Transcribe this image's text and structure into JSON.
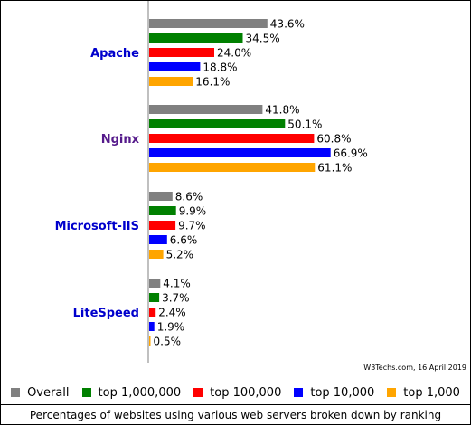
{
  "chart_data": {
    "type": "bar",
    "orientation": "horizontal",
    "categories": [
      "Apache",
      "Nginx",
      "Microsoft-IIS",
      "LiteSpeed"
    ],
    "category_colors": [
      "#0000cc",
      "#551a8b",
      "#0000cc",
      "#0000cc"
    ],
    "series": [
      {
        "name": "Overall",
        "color": "#808080",
        "values": [
          43.6,
          41.8,
          8.6,
          4.1
        ],
        "labels": [
          "43.6%",
          "41.8%",
          "8.6%",
          "4.1%"
        ]
      },
      {
        "name": "top 1,000,000",
        "color": "#008000",
        "values": [
          34.5,
          50.1,
          9.9,
          3.7
        ],
        "labels": [
          "34.5%",
          "50.1%",
          "9.9%",
          "3.7%"
        ]
      },
      {
        "name": "top 100,000",
        "color": "#ff0000",
        "values": [
          24.0,
          60.8,
          9.7,
          2.4
        ],
        "labels": [
          "24.0%",
          "60.8%",
          "9.7%",
          "2.4%"
        ]
      },
      {
        "name": "top 10,000",
        "color": "#0000ff",
        "values": [
          18.8,
          66.9,
          6.6,
          1.9
        ],
        "labels": [
          "18.8%",
          "66.9%",
          "6.6%",
          "1.9%"
        ]
      },
      {
        "name": "top 1,000",
        "color": "#ffa500",
        "values": [
          16.1,
          61.1,
          5.2,
          0.5
        ],
        "labels": [
          "16.1%",
          "61.1%",
          "5.2%",
          "0.5%"
        ]
      }
    ],
    "xlim": [
      0,
      100
    ],
    "grid": false,
    "legend_position": "bottom"
  },
  "credit": "W3Techs.com, 16 April 2019",
  "caption": "Percentages of websites using various web servers broken down by ranking"
}
